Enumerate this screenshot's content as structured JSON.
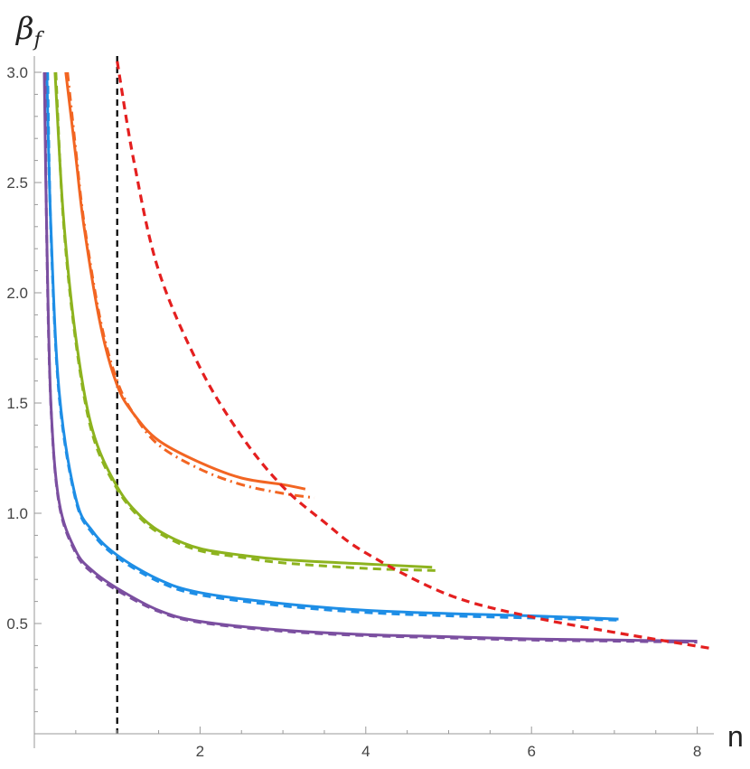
{
  "chart_data": {
    "type": "line",
    "title": "",
    "xlabel": "n",
    "ylabel": "β",
    "ylabel_subscript": "f",
    "xlim": [
      0,
      8.3
    ],
    "ylim": [
      0,
      3.05
    ],
    "x_ticks": [
      {
        "value": 2,
        "label": "2"
      },
      {
        "value": 4,
        "label": "4"
      },
      {
        "value": 6,
        "label": "6"
      },
      {
        "value": 8,
        "label": "8"
      }
    ],
    "y_ticks": [
      {
        "value": 0.5,
        "label": "0.5"
      },
      {
        "value": 1.0,
        "label": "1.0"
      },
      {
        "value": 1.5,
        "label": "1.5"
      },
      {
        "value": 2.0,
        "label": "2.0"
      },
      {
        "value": 2.5,
        "label": "2.5"
      },
      {
        "value": 3.0,
        "label": "3.0"
      }
    ],
    "reference_lines": [
      {
        "name": "vertical-n-1",
        "x": 1.0,
        "color": "#000000",
        "dash": "dashed"
      }
    ],
    "series": [
      {
        "name": "orange-solid",
        "color": "#f26522",
        "style": "solid",
        "x": [
          0.38,
          0.5,
          0.6,
          0.8,
          1.0,
          1.2,
          1.5,
          2.0,
          2.5,
          3.0,
          3.27
        ],
        "y": [
          3.0,
          2.62,
          2.3,
          1.85,
          1.58,
          1.45,
          1.33,
          1.23,
          1.16,
          1.13,
          1.11
        ]
      },
      {
        "name": "orange-dotdash",
        "color": "#f26522",
        "style": "dotdash",
        "x": [
          0.4,
          0.5,
          0.6,
          0.8,
          1.0,
          1.2,
          1.5,
          2.0,
          2.5,
          3.0,
          3.38
        ],
        "y": [
          3.0,
          2.65,
          2.32,
          1.87,
          1.6,
          1.45,
          1.31,
          1.2,
          1.13,
          1.09,
          1.07
        ]
      },
      {
        "name": "green-solid",
        "color": "#8db31f",
        "style": "solid",
        "x": [
          0.25,
          0.35,
          0.5,
          0.7,
          1.0,
          1.3,
          1.6,
          2.0,
          2.5,
          3.0,
          4.0,
          4.8
        ],
        "y": [
          3.0,
          2.35,
          1.8,
          1.38,
          1.12,
          0.98,
          0.9,
          0.84,
          0.81,
          0.79,
          0.77,
          0.755
        ]
      },
      {
        "name": "green-dashed",
        "color": "#8db31f",
        "style": "dashed",
        "x": [
          0.26,
          0.35,
          0.5,
          0.7,
          1.0,
          1.3,
          1.6,
          2.0,
          2.5,
          3.0,
          4.0,
          4.85
        ],
        "y": [
          3.0,
          2.33,
          1.78,
          1.36,
          1.11,
          0.97,
          0.89,
          0.83,
          0.8,
          0.775,
          0.75,
          0.74
        ]
      },
      {
        "name": "blue-solid",
        "color": "#1e8ee6",
        "style": "solid",
        "x": [
          0.15,
          0.2,
          0.3,
          0.5,
          0.7,
          1.0,
          1.5,
          2.0,
          3.0,
          4.0,
          5.0,
          6.0,
          7.05
        ],
        "y": [
          3.0,
          2.3,
          1.55,
          1.07,
          0.92,
          0.81,
          0.7,
          0.64,
          0.59,
          0.56,
          0.545,
          0.535,
          0.52
        ]
      },
      {
        "name": "blue-dashed",
        "color": "#1e8ee6",
        "style": "dashed",
        "x": [
          0.16,
          0.2,
          0.3,
          0.5,
          0.7,
          1.0,
          1.5,
          2.0,
          3.0,
          4.0,
          5.0,
          6.0,
          7.05
        ],
        "y": [
          3.0,
          2.28,
          1.53,
          1.06,
          0.91,
          0.8,
          0.69,
          0.63,
          0.58,
          0.55,
          0.535,
          0.525,
          0.515
        ]
      },
      {
        "name": "purple-solid",
        "color": "#7b4fa0",
        "style": "solid",
        "x": [
          0.12,
          0.15,
          0.2,
          0.3,
          0.5,
          0.7,
          1.0,
          1.5,
          2.0,
          3.0,
          4.0,
          5.0,
          6.0,
          7.0,
          8.0
        ],
        "y": [
          3.0,
          2.25,
          1.5,
          1.05,
          0.83,
          0.74,
          0.66,
          0.56,
          0.51,
          0.47,
          0.45,
          0.44,
          0.43,
          0.425,
          0.42
        ]
      },
      {
        "name": "purple-dashed",
        "color": "#7b4fa0",
        "style": "dashed",
        "x": [
          0.13,
          0.15,
          0.2,
          0.3,
          0.5,
          0.7,
          1.0,
          1.5,
          2.0,
          3.0,
          4.0,
          5.0,
          6.0,
          7.0,
          8.0
        ],
        "y": [
          3.0,
          2.23,
          1.49,
          1.04,
          0.82,
          0.73,
          0.65,
          0.555,
          0.505,
          0.465,
          0.445,
          0.435,
          0.425,
          0.42,
          0.415
        ]
      },
      {
        "name": "red-dashed-envelope",
        "color": "#e41f1f",
        "style": "dashed",
        "x": [
          1.0,
          1.2,
          1.5,
          2.0,
          2.5,
          3.0,
          3.5,
          4.0,
          5.0,
          6.0,
          7.0,
          8.2
        ],
        "y": [
          3.05,
          2.6,
          2.1,
          1.66,
          1.35,
          1.12,
          0.96,
          0.82,
          0.63,
          0.53,
          0.46,
          0.385
        ]
      }
    ]
  }
}
